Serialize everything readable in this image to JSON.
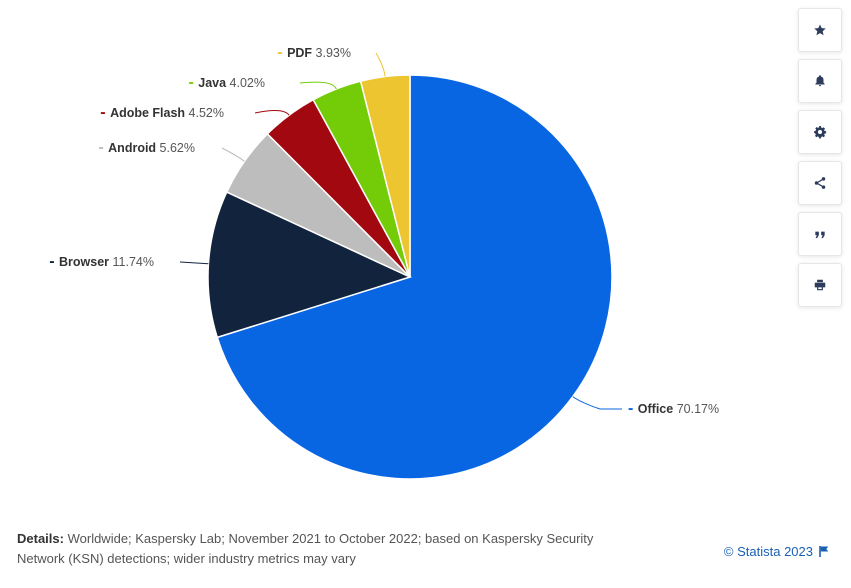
{
  "chart_data": {
    "type": "pie",
    "slices": [
      {
        "label": "Office",
        "value_label": "70.17%",
        "value": 70.17,
        "color": "#0966e3"
      },
      {
        "label": "Browser",
        "value_label": "11.74%",
        "value": 11.74,
        "color": "#12243d"
      },
      {
        "label": "Android",
        "value_label": "5.62%",
        "value": 5.62,
        "color": "#bdbdbd"
      },
      {
        "label": "Adobe Flash",
        "value_label": "4.52%",
        "value": 4.52,
        "color": "#a2080f"
      },
      {
        "label": "Java",
        "value_label": "4.02%",
        "value": 4.02,
        "color": "#74cc08"
      },
      {
        "label": "PDF",
        "value_label": "3.93%",
        "value": 3.93,
        "color": "#ecc530"
      }
    ]
  },
  "toolbar": {
    "icons": [
      "star-icon",
      "bell-icon",
      "gear-icon",
      "share-icon",
      "quote-icon",
      "print-icon"
    ]
  },
  "footer": {
    "details_label": "Details:",
    "details_text": "Worldwide; Kaspersky Lab; November 2021 to October 2022; based on Kaspersky Security Network (KSN) detections; wider industry metrics may vary",
    "credit": "© Statista 2023"
  }
}
